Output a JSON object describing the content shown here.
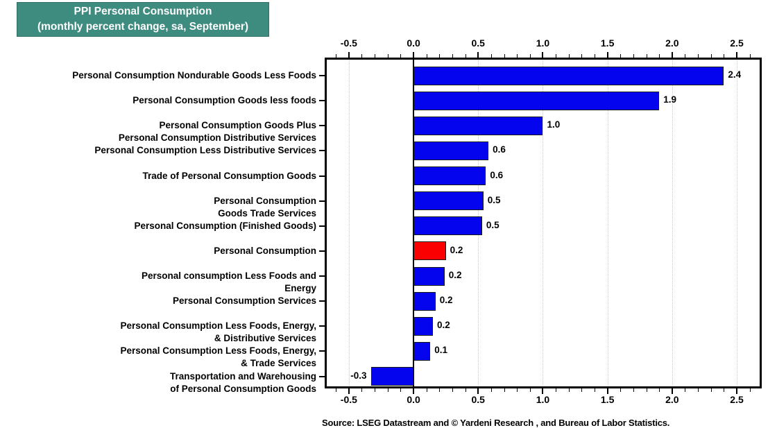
{
  "header": {
    "title_line1": "PPI Personal Consumption",
    "title_line2": "(monthly percent change, sa, September)",
    "bg_color": "#3E8B7F",
    "text_color": "#FFFFFF"
  },
  "source": "Source: LSEG Datastream and © Yardeni Research , and Bureau of Labor Statistics.",
  "chart_data": {
    "type": "bar",
    "orientation": "horizontal",
    "title": "PPI Personal Consumption (monthly percent change, sa, September)",
    "categories": [
      [
        "Personal Consumption Nondurable Goods Less Foods"
      ],
      [
        "Personal Consumption Goods less foods"
      ],
      [
        "Personal Consumption Goods Plus",
        "Personal Consumption Distributive Services"
      ],
      [
        "Personal Consumption Less Distributive Services"
      ],
      [
        "Trade of Personal Consumption Goods"
      ],
      [
        "Personal Consumption",
        "Goods Trade Services"
      ],
      [
        "Personal Consumption (Finished Goods)"
      ],
      [
        "Personal Consumption"
      ],
      [
        "Personal consumption Less Foods and",
        "Energy"
      ],
      [
        "Personal Consumption Services"
      ],
      [
        "Personal Consumption Less Foods, Energy,",
        "& Distributive Services"
      ],
      [
        "Personal Consumption Less Foods, Energy,",
        "& Trade Services"
      ],
      [
        "Transportation and Warehousing",
        "of Personal Consumption Goods"
      ]
    ],
    "values": [
      2.4,
      1.9,
      1.0,
      0.6,
      0.6,
      0.5,
      0.5,
      0.2,
      0.2,
      0.2,
      0.2,
      0.1,
      -0.3
    ],
    "value_labels": [
      "2.4",
      "1.9",
      "1.0",
      "0.6",
      "0.6",
      "0.5",
      "0.5",
      "0.2",
      "0.2",
      "0.2",
      "0.2",
      "0.1",
      "-0.3"
    ],
    "plot_values": [
      2.4,
      1.9,
      1.0,
      0.58,
      0.56,
      0.54,
      0.53,
      0.25,
      0.24,
      0.17,
      0.15,
      0.13,
      -0.33
    ],
    "bar_color_default": "#0404EE",
    "bar_color_highlight": "#FA0000",
    "highlight_index": 7,
    "xlim": [
      -0.687,
      2.693
    ],
    "x_major_ticks": [
      -0.5,
      0.0,
      0.5,
      1.0,
      1.5,
      2.0,
      2.5
    ],
    "x_tick_labels": [
      "-0.5",
      "0.0",
      "0.5",
      "1.0",
      "1.5",
      "2.0",
      "2.5"
    ],
    "x_minor_step": 0.1,
    "grid": "dotted-vertical-at-major-ticks",
    "legend": "none",
    "axis_label_positions": "top-and-bottom"
  }
}
